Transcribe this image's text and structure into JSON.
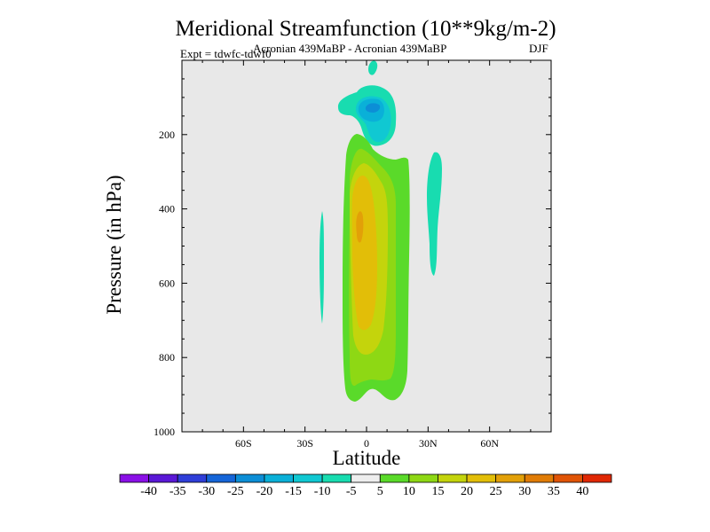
{
  "chart_data": {
    "type": "contour",
    "title": "Meridional Streamfunction (10**9kg/m-2)",
    "subtitle": "Acronian 439MaBP - Acronian 439MaBP",
    "annotation_left": "Expt = tdwfc-tdwf0",
    "annotation_right": "DJF",
    "xlabel": "Latitude",
    "ylabel": "Pressure (in hPa)",
    "xlim": [
      -90,
      90
    ],
    "ylim": [
      1000,
      0
    ],
    "y_axis_inverted": true,
    "x_ticks": [
      -60,
      -30,
      0,
      30,
      60
    ],
    "x_tick_labels": [
      "60S",
      "30S",
      "0",
      "30N",
      "60N"
    ],
    "y_ticks": [
      200,
      400,
      600,
      800,
      1000
    ],
    "y_tick_labels": [
      "200",
      "400",
      "600",
      "800",
      "1000"
    ],
    "colorbar": {
      "levels": [
        -40,
        -35,
        -30,
        -25,
        -20,
        -15,
        -10,
        -5,
        5,
        10,
        15,
        20,
        25,
        30,
        35,
        40
      ],
      "labels": [
        "-40",
        "-35",
        "-30",
        "-25",
        "-20",
        "-15",
        "-10",
        "-5",
        "5",
        "10",
        "15",
        "20",
        "25",
        "30",
        "35",
        "40"
      ],
      "colors": [
        "#8a10e6",
        "#5a18d6",
        "#2f3ed8",
        "#1565d8",
        "#0c8ed6",
        "#0ab0d8",
        "#10c8d2",
        "#18dcb0",
        "#eeeeee",
        "#5ada2a",
        "#8ed814",
        "#c4d40c",
        "#e2be08",
        "#e2a008",
        "#e07c06",
        "#e05406",
        "#e02804"
      ]
    },
    "background_color": "#e8e8e8",
    "features": [
      {
        "name": "negative-cell-upper",
        "latitude_range": [
          -12,
          14
        ],
        "pressure_range": [
          50,
          260
        ],
        "min_value_approx": -22
      },
      {
        "name": "positive-cell-main",
        "latitude_range": [
          -10,
          21
        ],
        "pressure_range": [
          200,
          950
        ],
        "max_value_approx": 27
      },
      {
        "name": "negative-sliver-south",
        "latitude_range": [
          -21,
          -20
        ],
        "pressure_range": [
          440,
          710
        ],
        "value_approx": -7
      },
      {
        "name": "negative-sliver-north",
        "latitude_range": [
          30,
          37
        ],
        "pressure_range": [
          240,
          580
        ],
        "value_approx": -7
      }
    ]
  }
}
